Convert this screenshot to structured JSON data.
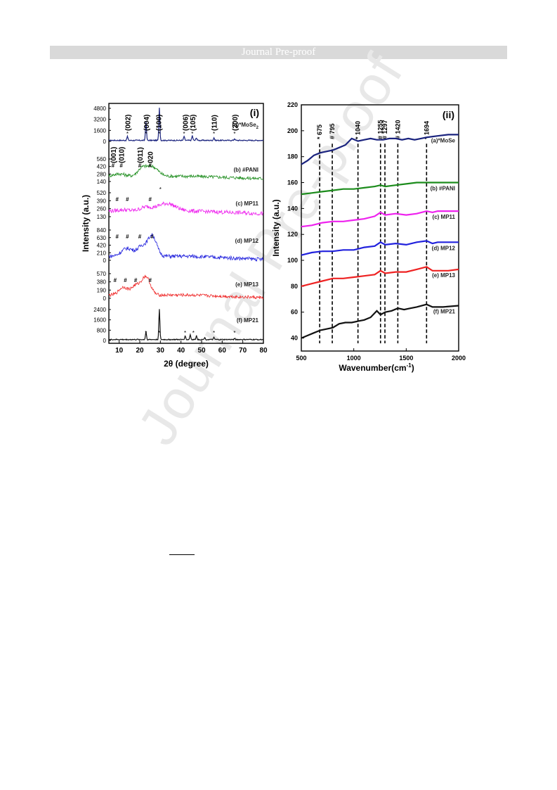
{
  "header": {
    "banner_text": "Journal Pre-proof"
  },
  "watermark": {
    "text": "Journal Pre-proof"
  },
  "chart_data": [
    {
      "type": "line",
      "panel_label": "(i)",
      "xlabel": "2θ (degree)",
      "ylabel": "Intensity (a.u.)",
      "xlim": [
        5,
        80
      ],
      "xticks": [
        10,
        20,
        30,
        40,
        50,
        60,
        70,
        80
      ],
      "peak_labels_top": [
        {
          "text": "(002)",
          "x": 14
        },
        {
          "text": "(004)",
          "x": 23
        },
        {
          "text": "(100)",
          "x": 29
        },
        {
          "text": "(006)",
          "x": 42
        },
        {
          "text": "(105)",
          "x": 45.5
        },
        {
          "text": "(110)",
          "x": 56
        },
        {
          "text": "(200)",
          "x": 66
        }
      ],
      "pani_peak_labels": [
        {
          "text": "(001)",
          "x": 7
        },
        {
          "text": "(010)",
          "x": 11
        },
        {
          "text": "(011)",
          "x": 20
        },
        {
          "text": "020",
          "x": 25
        }
      ],
      "series": [
        {
          "name": "(a)*MoSe",
          "name_sub": "2",
          "color": "#1a237e",
          "yticks": [
            "4800",
            "3200",
            "1600",
            "0"
          ],
          "kind": "sharp",
          "baseline": 0.05,
          "peaks": [
            [
              14,
              0.12
            ],
            [
              23,
              0.55
            ],
            [
              29.5,
              0.95
            ],
            [
              41.5,
              0.12
            ],
            [
              45.5,
              0.14
            ],
            [
              47.5,
              0.08
            ],
            [
              56,
              0.08
            ],
            [
              66,
              0.05
            ]
          ],
          "stars": [
            14,
            23,
            29.5,
            41.5,
            45.5,
            56,
            66
          ],
          "hashes": []
        },
        {
          "name": "(b) #PANI",
          "color": "#1c8c1c",
          "yticks": [
            "560",
            "420",
            "280",
            "140"
          ],
          "kind": "broad",
          "noise": 0.07,
          "humps": [
            [
              10,
              0.35,
              4
            ],
            [
              21,
              0.55,
              3
            ],
            [
              26,
              0.65,
              4
            ]
          ],
          "base": 0.25,
          "stars": [],
          "hashes": [
            7,
            11,
            20,
            25
          ]
        },
        {
          "name": "(c) MP11",
          "color": "#ee22ee",
          "yticks": [
            "520",
            "390",
            "260",
            "130"
          ],
          "kind": "broad",
          "noise": 0.08,
          "humps": [
            [
              12,
              0.3,
              4
            ],
            [
              23,
              0.4,
              4
            ],
            [
              33,
              0.55,
              6
            ]
          ],
          "base": 0.25,
          "stars": [
            30
          ],
          "hashes": [
            9,
            14,
            25
          ]
        },
        {
          "name": "(d) MP12",
          "color": "#2222dd",
          "yticks": [
            "840",
            "630",
            "420",
            "210",
            "0"
          ],
          "kind": "broad",
          "noise": 0.06,
          "humps": [
            [
              14,
              0.4,
              4
            ],
            [
              21,
              0.45,
              3
            ],
            [
              26,
              0.8,
              3
            ]
          ],
          "base": 0.15,
          "stars": [],
          "hashes": [
            9,
            14,
            20,
            26
          ]
        },
        {
          "name": "(e) MP13",
          "color": "#ee2222",
          "yticks": [
            "570",
            "380",
            "190",
            "0"
          ],
          "kind": "broad",
          "noise": 0.06,
          "humps": [
            [
              12,
              0.45,
              3
            ],
            [
              18,
              0.5,
              3
            ],
            [
              23,
              0.85,
              3
            ]
          ],
          "base": 0.15,
          "stars": [],
          "hashes": [
            8,
            13,
            18,
            25
          ]
        },
        {
          "name": "(f) MP21",
          "color": "#111111",
          "yticks": [
            "2400",
            "1600",
            "800",
            "0"
          ],
          "kind": "sharp",
          "baseline": 0.05,
          "peaks": [
            [
              23,
              0.25
            ],
            [
              29.5,
              0.95
            ],
            [
              42,
              0.12
            ],
            [
              44.5,
              0.15
            ],
            [
              47.5,
              0.12
            ],
            [
              51.5,
              0.06
            ],
            [
              56,
              0.06
            ],
            [
              66,
              0.04
            ]
          ],
          "stars": [
            23,
            29.5,
            42,
            46,
            56,
            66
          ],
          "hashes": []
        }
      ]
    },
    {
      "type": "line",
      "panel_label": "(ii)",
      "xlabel": "Wavenumber(cm",
      "xlabel_sup": "-1",
      "ylabel": "Intensity (a.u.)",
      "xlim": [
        500,
        2000
      ],
      "ylim": [
        30,
        220
      ],
      "xticks": [
        500,
        1000,
        1500,
        2000
      ],
      "yticks": [
        40,
        60,
        80,
        100,
        120,
        140,
        160,
        180,
        200,
        220
      ],
      "markers": [
        {
          "text": "* 675",
          "x": 675
        },
        {
          "text": "# 795",
          "x": 795
        },
        {
          "text": "* 1040",
          "x": 1040
        },
        {
          "text": "# 1255",
          "x": 1255
        },
        {
          "text": "# 1297",
          "x": 1297
        },
        {
          "text": "# 1420",
          "x": 1420
        },
        {
          "text": "* 1694",
          "x": 1694
        }
      ],
      "series": [
        {
          "name": "(a)*MoSe",
          "color": "#1a237e",
          "x": [
            500,
            560,
            620,
            680,
            740,
            800,
            860,
            920,
            980,
            1040,
            1100,
            1160,
            1220,
            1280,
            1340,
            1400,
            1460,
            1520,
            1580,
            1640,
            1700,
            1800,
            1900,
            2000
          ],
          "y": [
            174,
            177,
            181,
            183,
            184,
            185,
            187,
            189,
            194,
            192,
            193,
            194,
            193,
            193,
            194,
            194,
            193,
            194,
            193,
            194,
            195,
            196,
            197,
            197
          ]
        },
        {
          "name": "(b) #PANI",
          "color": "#1c8c1c",
          "x": [
            500,
            600,
            700,
            800,
            900,
            1000,
            1100,
            1200,
            1255,
            1300,
            1400,
            1500,
            1600,
            1700,
            1800,
            1900,
            2000
          ],
          "y": [
            151,
            152,
            153,
            154,
            155,
            155,
            156,
            157,
            158,
            157,
            158,
            159,
            160,
            160,
            160,
            160,
            160
          ]
        },
        {
          "name": "(c) MP11",
          "color": "#ee22ee",
          "x": [
            500,
            600,
            700,
            800,
            900,
            1000,
            1100,
            1200,
            1255,
            1300,
            1400,
            1500,
            1600,
            1694,
            1750,
            1800,
            1900,
            2000
          ],
          "y": [
            126,
            127,
            129,
            130,
            130,
            131,
            132,
            134,
            137,
            135,
            136,
            135,
            136,
            138,
            137,
            138,
            138,
            138
          ]
        },
        {
          "name": "(d) MP12",
          "color": "#2222dd",
          "x": [
            500,
            600,
            700,
            800,
            900,
            1000,
            1100,
            1200,
            1255,
            1300,
            1400,
            1500,
            1600,
            1694,
            1750,
            1800,
            1900,
            2000
          ],
          "y": [
            104,
            106,
            107,
            107,
            108,
            108,
            110,
            111,
            114,
            112,
            113,
            112,
            114,
            115,
            113,
            114,
            114,
            114
          ]
        },
        {
          "name": "(e) MP13",
          "color": "#ee2222",
          "x": [
            500,
            600,
            700,
            800,
            900,
            1000,
            1100,
            1200,
            1255,
            1300,
            1400,
            1500,
            1600,
            1694,
            1750,
            1800,
            1900,
            2000
          ],
          "y": [
            80,
            82,
            84,
            86,
            86,
            87,
            88,
            89,
            92,
            90,
            91,
            91,
            93,
            95,
            92,
            92,
            92,
            93
          ]
        },
        {
          "name": "(f) MP21",
          "color": "#111111",
          "x": [
            500,
            560,
            620,
            680,
            740,
            800,
            860,
            920,
            980,
            1040,
            1100,
            1160,
            1220,
            1255,
            1300,
            1360,
            1420,
            1480,
            1540,
            1600,
            1694,
            1750,
            1850,
            2000
          ],
          "y": [
            40,
            42,
            44,
            46,
            47,
            48,
            51,
            52,
            52,
            53,
            54,
            56,
            61,
            58,
            60,
            61,
            63,
            62,
            63,
            64,
            66,
            64,
            64,
            65
          ]
        }
      ]
    }
  ]
}
